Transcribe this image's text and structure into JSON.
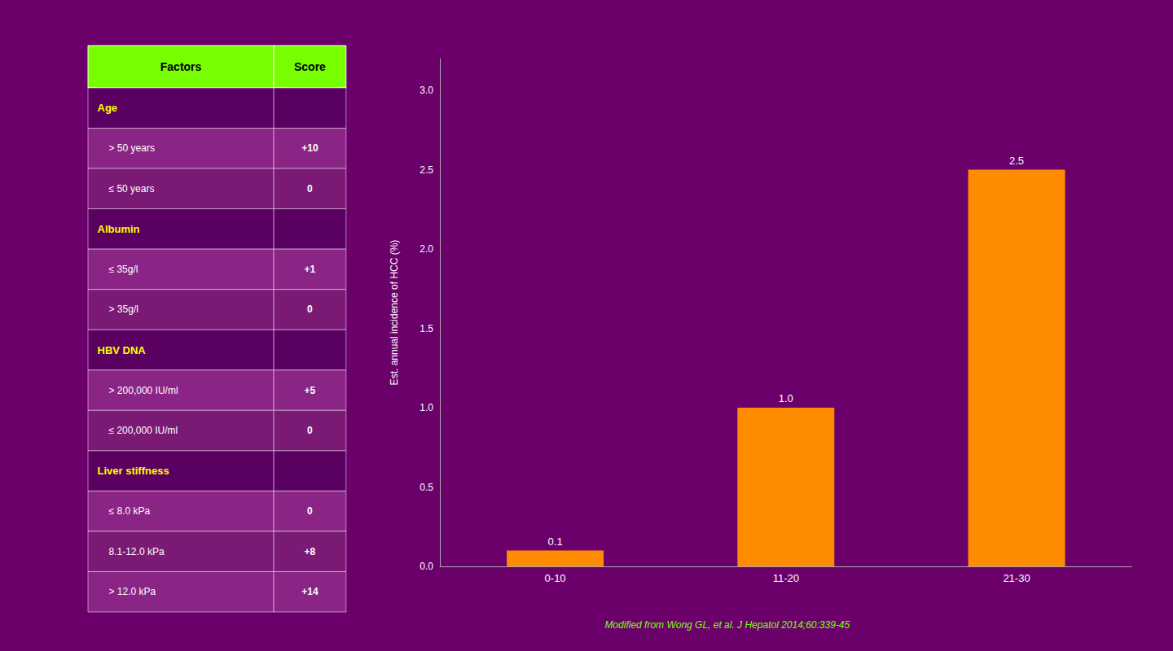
{
  "chart_data": [
    {
      "type": "table",
      "headers": [
        "Factors",
        "Score"
      ],
      "rows": [
        [
          "Age",
          null
        ],
        [
          "> 50 years",
          "+10"
        ],
        [
          "≤ 50 years",
          "0"
        ],
        [
          "Albumin",
          null
        ],
        [
          "≤ 35g/l",
          "+1"
        ],
        [
          "> 35g/l",
          "0"
        ],
        [
          "HBV DNA",
          null
        ],
        [
          "> 200,000 IU/ml",
          "+5"
        ],
        [
          "≤ 200,000 IU/ml",
          "0"
        ],
        [
          "Liver stiffness",
          null
        ],
        [
          "≤ 8.0 kPa",
          "0"
        ],
        [
          "8.1-12.0 kPa",
          "+8"
        ],
        [
          "> 12.0 kPa",
          "+14"
        ]
      ]
    },
    {
      "type": "bar",
      "categories": [
        "0-10",
        "11-20",
        "21-30"
      ],
      "values": [
        0.1,
        1.0,
        2.5
      ],
      "value_labels": [
        "0.1",
        "1.0",
        "2.5"
      ],
      "data_labels": true,
      "color": "#FF8C00",
      "ylabel": "Est. annual incidence of HCC (%)",
      "ylim": [
        0,
        3.2
      ],
      "yticks": [
        {
          "value": 0.0,
          "label": "0.0"
        },
        {
          "value": 0.5,
          "label": "0.5"
        },
        {
          "value": 1.0,
          "label": "1.0"
        },
        {
          "value": 1.5,
          "label": "1.5"
        },
        {
          "value": 2.0,
          "label": "2.0"
        },
        {
          "value": 2.5,
          "label": "2.5"
        },
        {
          "value": 3.0,
          "label": "3.0"
        }
      ],
      "grid": false,
      "annotations": [
        "Modified from Wong GL, et al. J Hepatol 2014;60:339-45"
      ]
    }
  ]
}
